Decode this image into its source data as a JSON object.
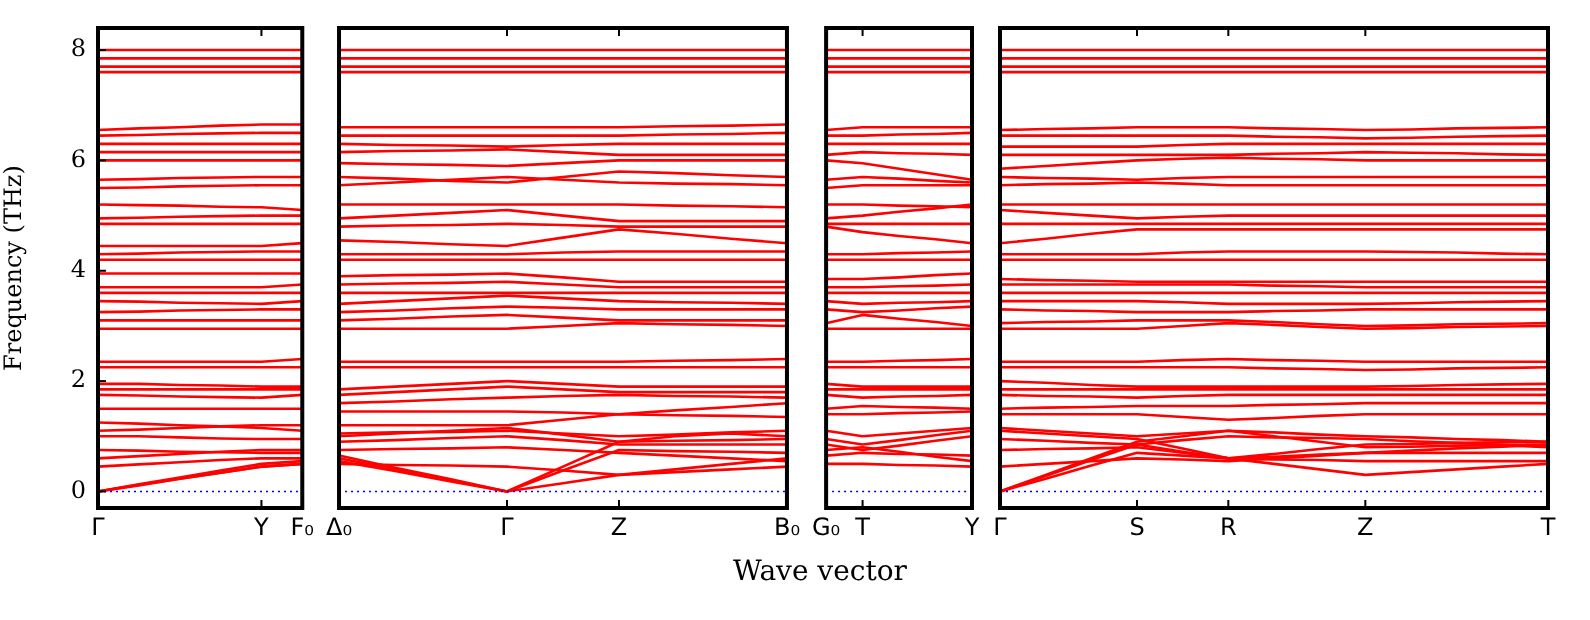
{
  "chart_data": [
    {
      "type": "line",
      "ylabel": "Frequency (THz)",
      "categories": [
        "Γ",
        null,
        null,
        null,
        "Y",
        "F₀"
      ],
      "ylim": [
        -0.3,
        8.4
      ],
      "yticks": [
        0,
        2,
        4,
        6,
        8
      ],
      "grid": false,
      "marker": "none",
      "line_style": "solid",
      "legend": false,
      "ref_lines": [
        {
          "axis": "y",
          "value": 0,
          "color": "#0000ff",
          "line_style": "dotted"
        }
      ],
      "series": [
        {
          "color": "#ff0000",
          "values": [
            0,
            0.12,
            0.23,
            0.34,
            0.45,
            0.5
          ]
        },
        {
          "color": "#ff0000",
          "values": [
            0,
            0.13,
            0.25,
            0.38,
            0.5,
            0.55
          ]
        },
        {
          "color": "#ff0000",
          "values": [
            0,
            0.11,
            0.23,
            0.34,
            0.45,
            0.5
          ]
        },
        {
          "color": "#ff0000",
          "values": [
            0.45,
            0.49,
            0.53,
            0.57,
            0.6,
            0.6
          ]
        },
        {
          "color": "#ff0000",
          "values": [
            0.6,
            0.64,
            0.68,
            0.72,
            0.75,
            0.75
          ]
        },
        {
          "color": "#ff0000",
          "values": [
            0.75,
            0.74,
            0.72,
            0.71,
            0.7,
            0.7
          ]
        },
        {
          "color": "#ff0000",
          "values": [
            1.0,
            1.0,
            0.98,
            0.96,
            0.95,
            0.95
          ]
        },
        {
          "color": "#ff0000",
          "values": [
            1.1,
            1.12,
            1.15,
            1.18,
            1.2,
            1.2
          ]
        },
        {
          "color": "#ff0000",
          "values": [
            1.25,
            1.23,
            1.2,
            1.18,
            1.15,
            1.1
          ]
        },
        {
          "color": "#ff0000",
          "values": [
            1.5,
            1.5,
            1.5,
            1.5,
            1.5,
            1.5
          ]
        },
        {
          "color": "#ff0000",
          "values": [
            1.75,
            1.74,
            1.72,
            1.71,
            1.7,
            1.75
          ]
        },
        {
          "color": "#ff0000",
          "values": [
            1.85,
            1.85,
            1.85,
            1.85,
            1.85,
            1.85
          ]
        },
        {
          "color": "#ff0000",
          "values": [
            1.95,
            1.95,
            1.93,
            1.92,
            1.9,
            1.9
          ]
        },
        {
          "color": "#ff0000",
          "values": [
            2.25,
            2.25,
            2.25,
            2.25,
            2.25,
            2.25
          ]
        },
        {
          "color": "#ff0000",
          "values": [
            2.35,
            2.35,
            2.35,
            2.35,
            2.35,
            2.4
          ]
        },
        {
          "color": "#ff0000",
          "values": [
            2.95,
            2.95,
            2.95,
            2.95,
            2.95,
            2.95
          ]
        },
        {
          "color": "#ff0000",
          "values": [
            3.1,
            3.1,
            3.1,
            3.1,
            3.1,
            3.1
          ]
        },
        {
          "color": "#ff0000",
          "values": [
            3.25,
            3.26,
            3.28,
            3.29,
            3.3,
            3.3
          ]
        },
        {
          "color": "#ff0000",
          "values": [
            3.45,
            3.44,
            3.42,
            3.41,
            3.4,
            3.45
          ]
        },
        {
          "color": "#ff0000",
          "values": [
            3.6,
            3.6,
            3.6,
            3.6,
            3.6,
            3.6
          ]
        },
        {
          "color": "#ff0000",
          "values": [
            3.7,
            3.7,
            3.7,
            3.7,
            3.7,
            3.75
          ]
        },
        {
          "color": "#ff0000",
          "values": [
            3.95,
            3.95,
            3.95,
            3.95,
            3.95,
            3.95
          ]
        },
        {
          "color": "#ff0000",
          "values": [
            4.2,
            4.2,
            4.2,
            4.2,
            4.2,
            4.2
          ]
        },
        {
          "color": "#ff0000",
          "values": [
            4.3,
            4.31,
            4.33,
            4.34,
            4.35,
            4.35
          ]
        },
        {
          "color": "#ff0000",
          "values": [
            4.45,
            4.45,
            4.45,
            4.45,
            4.45,
            4.5
          ]
        },
        {
          "color": "#ff0000",
          "values": [
            4.85,
            4.85,
            4.85,
            4.85,
            4.85,
            4.85
          ]
        },
        {
          "color": "#ff0000",
          "values": [
            4.95,
            4.96,
            4.98,
            4.99,
            5.0,
            5.0
          ]
        },
        {
          "color": "#ff0000",
          "values": [
            5.2,
            5.19,
            5.18,
            5.16,
            5.15,
            5.1
          ]
        },
        {
          "color": "#ff0000",
          "values": [
            5.5,
            5.51,
            5.53,
            5.54,
            5.55,
            5.55
          ]
        },
        {
          "color": "#ff0000",
          "values": [
            5.65,
            5.66,
            5.68,
            5.69,
            5.7,
            5.7
          ]
        },
        {
          "color": "#ff0000",
          "values": [
            6.0,
            6.0,
            6.0,
            6.0,
            6.0,
            6.0
          ]
        },
        {
          "color": "#ff0000",
          "values": [
            6.15,
            6.15,
            6.15,
            6.15,
            6.15,
            6.15
          ]
        },
        {
          "color": "#ff0000",
          "values": [
            6.3,
            6.3,
            6.3,
            6.3,
            6.3,
            6.3
          ]
        },
        {
          "color": "#ff0000",
          "values": [
            6.45,
            6.46,
            6.48,
            6.49,
            6.5,
            6.5
          ]
        },
        {
          "color": "#ff0000",
          "values": [
            6.55,
            6.58,
            6.6,
            6.63,
            6.65,
            6.65
          ]
        },
        {
          "color": "#ff0000",
          "values": [
            7.6,
            7.6,
            7.6,
            7.6,
            7.6,
            7.6
          ]
        },
        {
          "color": "#ff0000",
          "values": [
            7.7,
            7.7,
            7.7,
            7.7,
            7.7,
            7.7
          ]
        },
        {
          "color": "#ff0000",
          "values": [
            7.85,
            7.85,
            7.85,
            7.85,
            7.85,
            7.85
          ]
        },
        {
          "color": "#ff0000",
          "values": [
            8.0,
            8.0,
            8.0,
            8.0,
            8.0,
            8.0
          ]
        }
      ]
    },
    {
      "type": "line",
      "xlabel": "Wave vector",
      "categories": [
        "Δ₀",
        null,
        null,
        "Γ",
        null,
        "Z",
        null,
        null,
        "B₀"
      ],
      "ylim": [
        -0.3,
        8.4
      ],
      "tick_labels": "x",
      "grid": false,
      "marker": "none",
      "line_style": "solid",
      "legend": false,
      "ref_lines": [
        {
          "axis": "y",
          "value": 0,
          "color": "#0000ff",
          "line_style": "dotted"
        }
      ],
      "series": [
        {
          "color": "#ff0000",
          "values": [
            0.55,
            0.37,
            0.18,
            0,
            0.15,
            0.3,
            0.4,
            0.5,
            0.6
          ]
        },
        {
          "color": "#ff0000",
          "values": [
            0.6,
            0.4,
            0.2,
            0,
            0.38,
            0.75,
            0.73,
            0.72,
            0.7
          ]
        },
        {
          "color": "#ff0000",
          "values": [
            0.65,
            0.43,
            0.22,
            0,
            0.45,
            0.9,
            1.0,
            1.05,
            1.0
          ]
        },
        {
          "color": "#ff0000",
          "values": [
            0.5,
            0.48,
            0.47,
            0.45,
            0.38,
            0.3,
            0.35,
            0.4,
            0.45
          ]
        },
        {
          "color": "#ff0000",
          "values": [
            0.75,
            0.77,
            0.78,
            0.8,
            0.75,
            0.7,
            0.65,
            0.6,
            0.55
          ]
        },
        {
          "color": "#ff0000",
          "values": [
            0.9,
            0.93,
            0.97,
            1.0,
            0.93,
            0.85,
            0.85,
            0.85,
            0.85
          ]
        },
        {
          "color": "#ff0000",
          "values": [
            1.0,
            1.05,
            1.1,
            1.15,
            1.03,
            0.9,
            0.92,
            0.93,
            0.95
          ]
        },
        {
          "color": "#ff0000",
          "values": [
            1.05,
            1.07,
            1.08,
            1.1,
            1.05,
            1.0,
            1.03,
            1.07,
            1.1
          ]
        },
        {
          "color": "#ff0000",
          "values": [
            1.2,
            1.2,
            1.2,
            1.2,
            1.3,
            1.4,
            1.38,
            1.37,
            1.35
          ]
        },
        {
          "color": "#ff0000",
          "values": [
            1.45,
            1.45,
            1.45,
            1.45,
            1.43,
            1.4,
            1.47,
            1.53,
            1.6
          ]
        },
        {
          "color": "#ff0000",
          "values": [
            1.6,
            1.63,
            1.67,
            1.7,
            1.73,
            1.75,
            1.73,
            1.72,
            1.7
          ]
        },
        {
          "color": "#ff0000",
          "values": [
            1.75,
            1.8,
            1.85,
            1.9,
            1.85,
            1.8,
            1.8,
            1.8,
            1.8
          ]
        },
        {
          "color": "#ff0000",
          "values": [
            1.85,
            1.9,
            1.95,
            2.0,
            1.95,
            1.9,
            1.9,
            1.9,
            1.9
          ]
        },
        {
          "color": "#ff0000",
          "values": [
            2.25,
            2.25,
            2.25,
            2.25,
            2.25,
            2.25,
            2.25,
            2.25,
            2.25
          ]
        },
        {
          "color": "#ff0000",
          "values": [
            2.35,
            2.35,
            2.35,
            2.35,
            2.35,
            2.35,
            2.37,
            2.38,
            2.4
          ]
        },
        {
          "color": "#ff0000",
          "values": [
            2.95,
            2.95,
            2.95,
            2.95,
            3.0,
            3.05,
            3.03,
            3.02,
            3.0
          ]
        },
        {
          "color": "#ff0000",
          "values": [
            3.1,
            3.13,
            3.17,
            3.2,
            3.15,
            3.1,
            3.1,
            3.1,
            3.1
          ]
        },
        {
          "color": "#ff0000",
          "values": [
            3.25,
            3.28,
            3.32,
            3.35,
            3.33,
            3.3,
            3.3,
            3.3,
            3.3
          ]
        },
        {
          "color": "#ff0000",
          "values": [
            3.4,
            3.45,
            3.5,
            3.55,
            3.5,
            3.45,
            3.43,
            3.42,
            3.4
          ]
        },
        {
          "color": "#ff0000",
          "values": [
            3.6,
            3.6,
            3.6,
            3.6,
            3.6,
            3.6,
            3.6,
            3.6,
            3.6
          ]
        },
        {
          "color": "#ff0000",
          "values": [
            3.75,
            3.77,
            3.78,
            3.8,
            3.75,
            3.7,
            3.7,
            3.7,
            3.7
          ]
        },
        {
          "color": "#ff0000",
          "values": [
            3.9,
            3.92,
            3.93,
            3.95,
            3.88,
            3.8,
            3.8,
            3.8,
            3.8
          ]
        },
        {
          "color": "#ff0000",
          "values": [
            4.2,
            4.2,
            4.2,
            4.2,
            4.2,
            4.2,
            4.2,
            4.2,
            4.2
          ]
        },
        {
          "color": "#ff0000",
          "values": [
            4.3,
            4.3,
            4.3,
            4.3,
            4.33,
            4.35,
            4.35,
            4.35,
            4.35
          ]
        },
        {
          "color": "#ff0000",
          "values": [
            4.55,
            4.52,
            4.48,
            4.45,
            4.6,
            4.75,
            4.67,
            4.58,
            4.5
          ]
        },
        {
          "color": "#ff0000",
          "values": [
            4.8,
            4.82,
            4.83,
            4.85,
            4.83,
            4.8,
            4.8,
            4.8,
            4.8
          ]
        },
        {
          "color": "#ff0000",
          "values": [
            4.95,
            5.0,
            5.05,
            5.1,
            5.0,
            4.9,
            4.9,
            4.9,
            4.9
          ]
        },
        {
          "color": "#ff0000",
          "values": [
            5.2,
            5.2,
            5.2,
            5.2,
            5.2,
            5.2,
            5.18,
            5.17,
            5.15
          ]
        },
        {
          "color": "#ff0000",
          "values": [
            5.55,
            5.6,
            5.65,
            5.7,
            5.65,
            5.6,
            5.58,
            5.57,
            5.55
          ]
        },
        {
          "color": "#ff0000",
          "values": [
            5.7,
            5.67,
            5.63,
            5.6,
            5.7,
            5.8,
            5.77,
            5.73,
            5.7
          ]
        },
        {
          "color": "#ff0000",
          "values": [
            5.95,
            5.93,
            5.92,
            5.9,
            5.95,
            6.0,
            6.0,
            6.0,
            6.0
          ]
        },
        {
          "color": "#ff0000",
          "values": [
            6.15,
            6.17,
            6.18,
            6.2,
            6.15,
            6.1,
            6.1,
            6.1,
            6.1
          ]
        },
        {
          "color": "#ff0000",
          "values": [
            6.3,
            6.28,
            6.27,
            6.25,
            6.28,
            6.3,
            6.3,
            6.3,
            6.3
          ]
        },
        {
          "color": "#ff0000",
          "values": [
            6.45,
            6.45,
            6.45,
            6.45,
            6.45,
            6.45,
            6.47,
            6.48,
            6.5
          ]
        },
        {
          "color": "#ff0000",
          "values": [
            6.6,
            6.6,
            6.6,
            6.6,
            6.6,
            6.6,
            6.62,
            6.63,
            6.65
          ]
        },
        {
          "color": "#ff0000",
          "values": [
            7.6,
            7.6,
            7.6,
            7.6,
            7.6,
            7.6,
            7.6,
            7.6,
            7.6
          ]
        },
        {
          "color": "#ff0000",
          "values": [
            7.7,
            7.7,
            7.7,
            7.7,
            7.7,
            7.7,
            7.7,
            7.7,
            7.7
          ]
        },
        {
          "color": "#ff0000",
          "values": [
            7.85,
            7.85,
            7.85,
            7.85,
            7.85,
            7.85,
            7.85,
            7.85,
            7.85
          ]
        },
        {
          "color": "#ff0000",
          "values": [
            8.0,
            8.0,
            8.0,
            8.0,
            8.0,
            8.0,
            8.0,
            8.0,
            8.0
          ]
        }
      ]
    },
    {
      "type": "line",
      "categories": [
        "G₀",
        "T",
        null,
        null,
        "Y"
      ],
      "ylim": [
        -0.3,
        8.4
      ],
      "tick_labels": "x",
      "grid": false,
      "marker": "none",
      "line_style": "solid",
      "legend": false,
      "ref_lines": [
        {
          "axis": "y",
          "value": 0,
          "color": "#0000ff",
          "line_style": "dotted"
        }
      ],
      "series": [
        {
          "color": "#ff0000",
          "values": [
            0.5,
            0.5,
            0.48,
            0.47,
            0.45
          ]
        },
        {
          "color": "#ff0000",
          "values": [
            0.75,
            0.8,
            0.72,
            0.63,
            0.55
          ]
        },
        {
          "color": "#ff0000",
          "values": [
            0.95,
            0.85,
            0.93,
            1.02,
            1.1
          ]
        },
        {
          "color": "#ff0000",
          "values": [
            0.85,
            0.75,
            0.83,
            0.92,
            1.0
          ]
        },
        {
          "color": "#ff0000",
          "values": [
            0.65,
            0.7,
            0.68,
            0.67,
            0.65
          ]
        },
        {
          "color": "#ff0000",
          "values": [
            1.1,
            1.0,
            1.05,
            1.1,
            1.15
          ]
        },
        {
          "color": "#ff0000",
          "values": [
            1.4,
            1.4,
            1.42,
            1.43,
            1.45
          ]
        },
        {
          "color": "#ff0000",
          "values": [
            1.5,
            1.55,
            1.53,
            1.52,
            1.5
          ]
        },
        {
          "color": "#ff0000",
          "values": [
            1.75,
            1.7,
            1.72,
            1.73,
            1.75
          ]
        },
        {
          "color": "#ff0000",
          "values": [
            1.85,
            1.85,
            1.85,
            1.85,
            1.85
          ]
        },
        {
          "color": "#ff0000",
          "values": [
            1.95,
            1.9,
            1.9,
            1.9,
            1.9
          ]
        },
        {
          "color": "#ff0000",
          "values": [
            2.25,
            2.25,
            2.25,
            2.25,
            2.25
          ]
        },
        {
          "color": "#ff0000",
          "values": [
            2.35,
            2.35,
            2.37,
            2.38,
            2.4
          ]
        },
        {
          "color": "#ff0000",
          "values": [
            2.95,
            2.95,
            2.95,
            2.95,
            2.95
          ]
        },
        {
          "color": "#ff0000",
          "values": [
            3.05,
            3.2,
            3.13,
            3.07,
            3.0
          ]
        },
        {
          "color": "#ff0000",
          "values": [
            3.3,
            3.25,
            3.28,
            3.32,
            3.35
          ]
        },
        {
          "color": "#ff0000",
          "values": [
            3.45,
            3.4,
            3.42,
            3.43,
            3.45
          ]
        },
        {
          "color": "#ff0000",
          "values": [
            3.6,
            3.6,
            3.6,
            3.6,
            3.6
          ]
        },
        {
          "color": "#ff0000",
          "values": [
            3.7,
            3.7,
            3.72,
            3.73,
            3.75
          ]
        },
        {
          "color": "#ff0000",
          "values": [
            3.85,
            3.85,
            3.88,
            3.92,
            3.95
          ]
        },
        {
          "color": "#ff0000",
          "values": [
            4.2,
            4.2,
            4.2,
            4.2,
            4.2
          ]
        },
        {
          "color": "#ff0000",
          "values": [
            4.3,
            4.3,
            4.32,
            4.33,
            4.35
          ]
        },
        {
          "color": "#ff0000",
          "values": [
            4.8,
            4.7,
            4.63,
            4.57,
            4.5
          ]
        },
        {
          "color": "#ff0000",
          "values": [
            4.85,
            4.85,
            4.85,
            4.85,
            4.85
          ]
        },
        {
          "color": "#ff0000",
          "values": [
            4.95,
            5.0,
            5.07,
            5.13,
            5.2
          ]
        },
        {
          "color": "#ff0000",
          "values": [
            5.2,
            5.2,
            5.18,
            5.17,
            5.15
          ]
        },
        {
          "color": "#ff0000",
          "values": [
            5.5,
            5.55,
            5.55,
            5.55,
            5.55
          ]
        },
        {
          "color": "#ff0000",
          "values": [
            5.65,
            5.7,
            5.67,
            5.63,
            5.6
          ]
        },
        {
          "color": "#ff0000",
          "values": [
            6.0,
            5.95,
            5.85,
            5.75,
            5.65
          ]
        },
        {
          "color": "#ff0000",
          "values": [
            6.1,
            6.15,
            6.13,
            6.12,
            6.1
          ]
        },
        {
          "color": "#ff0000",
          "values": [
            6.3,
            6.3,
            6.3,
            6.3,
            6.3
          ]
        },
        {
          "color": "#ff0000",
          "values": [
            6.45,
            6.45,
            6.47,
            6.48,
            6.5
          ]
        },
        {
          "color": "#ff0000",
          "values": [
            6.55,
            6.6,
            6.6,
            6.6,
            6.6
          ]
        },
        {
          "color": "#ff0000",
          "values": [
            7.6,
            7.6,
            7.6,
            7.6,
            7.6
          ]
        },
        {
          "color": "#ff0000",
          "values": [
            7.7,
            7.7,
            7.7,
            7.7,
            7.7
          ]
        },
        {
          "color": "#ff0000",
          "values": [
            7.85,
            7.85,
            7.85,
            7.85,
            7.85
          ]
        },
        {
          "color": "#ff0000",
          "values": [
            8.0,
            8.0,
            8.0,
            8.0,
            8.0
          ]
        }
      ]
    },
    {
      "type": "line",
      "categories": [
        "Γ",
        null,
        null,
        "S",
        null,
        "R",
        null,
        null,
        "Z",
        null,
        null,
        null,
        "T"
      ],
      "ylim": [
        -0.3,
        8.4
      ],
      "tick_labels": "x",
      "grid": false,
      "marker": "none",
      "line_style": "solid",
      "legend": false,
      "ref_lines": [
        {
          "axis": "y",
          "value": 0,
          "color": "#0000ff",
          "line_style": "dotted"
        }
      ],
      "series": [
        {
          "color": "#ff0000",
          "values": [
            0,
            0.23,
            0.47,
            0.7,
            0.65,
            0.6,
            0.5,
            0.4,
            0.3,
            0.35,
            0.4,
            0.45,
            0.5
          ]
        },
        {
          "color": "#ff0000",
          "values": [
            0,
            0.28,
            0.57,
            0.85,
            0.72,
            0.6,
            0.63,
            0.67,
            0.7,
            0.7,
            0.7,
            0.7,
            0.7
          ]
        },
        {
          "color": "#ff0000",
          "values": [
            0,
            0.3,
            0.6,
            0.9,
            1.0,
            1.1,
            1.0,
            0.9,
            0.8,
            0.81,
            0.83,
            0.84,
            0.85
          ]
        },
        {
          "color": "#ff0000",
          "values": [
            0.45,
            0.5,
            0.55,
            0.6,
            0.58,
            0.55,
            0.6,
            0.65,
            0.7,
            0.74,
            0.78,
            0.81,
            0.85
          ]
        },
        {
          "color": "#ff0000",
          "values": [
            0.75,
            0.77,
            0.78,
            0.8,
            0.7,
            0.6,
            0.68,
            0.77,
            0.85,
            0.86,
            0.88,
            0.89,
            0.9
          ]
        },
        {
          "color": "#ff0000",
          "values": [
            0.95,
            0.92,
            0.88,
            0.85,
            0.93,
            1.0,
            0.98,
            0.97,
            0.95,
            0.91,
            0.88,
            0.84,
            0.8
          ]
        },
        {
          "color": "#ff0000",
          "values": [
            1.1,
            1.05,
            1.0,
            0.95,
            0.78,
            0.6,
            0.58,
            0.57,
            0.55,
            0.55,
            0.55,
            0.55,
            0.55
          ]
        },
        {
          "color": "#ff0000",
          "values": [
            1.15,
            1.1,
            1.05,
            1.0,
            1.05,
            1.1,
            1.07,
            1.03,
            1.0,
            0.98,
            0.95,
            0.93,
            0.9
          ]
        },
        {
          "color": "#ff0000",
          "values": [
            1.4,
            1.4,
            1.4,
            1.4,
            1.35,
            1.3,
            1.33,
            1.37,
            1.4,
            1.4,
            1.4,
            1.4,
            1.4
          ]
        },
        {
          "color": "#ff0000",
          "values": [
            1.5,
            1.52,
            1.53,
            1.55,
            1.55,
            1.55,
            1.57,
            1.58,
            1.6,
            1.6,
            1.6,
            1.6,
            1.6
          ]
        },
        {
          "color": "#ff0000",
          "values": [
            1.75,
            1.73,
            1.72,
            1.7,
            1.73,
            1.75,
            1.75,
            1.75,
            1.75,
            1.75,
            1.75,
            1.75,
            1.75
          ]
        },
        {
          "color": "#ff0000",
          "values": [
            1.85,
            1.85,
            1.85,
            1.85,
            1.85,
            1.85,
            1.85,
            1.85,
            1.85,
            1.85,
            1.85,
            1.85,
            1.85
          ]
        },
        {
          "color": "#ff0000",
          "values": [
            2.0,
            1.97,
            1.93,
            1.9,
            1.9,
            1.9,
            1.9,
            1.9,
            1.9,
            1.91,
            1.93,
            1.94,
            1.95
          ]
        },
        {
          "color": "#ff0000",
          "values": [
            2.25,
            2.25,
            2.25,
            2.25,
            2.25,
            2.25,
            2.23,
            2.22,
            2.2,
            2.21,
            2.23,
            2.24,
            2.25
          ]
        },
        {
          "color": "#ff0000",
          "values": [
            2.35,
            2.35,
            2.35,
            2.35,
            2.38,
            2.4,
            2.38,
            2.37,
            2.35,
            2.35,
            2.35,
            2.35,
            2.35
          ]
        },
        {
          "color": "#ff0000",
          "values": [
            2.95,
            2.95,
            2.95,
            2.95,
            3.0,
            3.05,
            3.02,
            2.98,
            2.95,
            2.96,
            2.98,
            2.99,
            3.0
          ]
        },
        {
          "color": "#ff0000",
          "values": [
            3.05,
            3.07,
            3.08,
            3.1,
            3.1,
            3.1,
            3.07,
            3.03,
            3.0,
            3.01,
            3.03,
            3.04,
            3.05
          ]
        },
        {
          "color": "#ff0000",
          "values": [
            3.3,
            3.28,
            3.27,
            3.25,
            3.25,
            3.25,
            3.27,
            3.28,
            3.3,
            3.3,
            3.3,
            3.3,
            3.3
          ]
        },
        {
          "color": "#ff0000",
          "values": [
            3.45,
            3.45,
            3.45,
            3.45,
            3.43,
            3.4,
            3.4,
            3.4,
            3.4,
            3.41,
            3.43,
            3.44,
            3.45
          ]
        },
        {
          "color": "#ff0000",
          "values": [
            3.6,
            3.6,
            3.6,
            3.6,
            3.6,
            3.6,
            3.6,
            3.6,
            3.6,
            3.6,
            3.6,
            3.6,
            3.6
          ]
        },
        {
          "color": "#ff0000",
          "values": [
            3.75,
            3.75,
            3.75,
            3.75,
            3.75,
            3.75,
            3.73,
            3.72,
            3.7,
            3.7,
            3.7,
            3.7,
            3.7
          ]
        },
        {
          "color": "#ff0000",
          "values": [
            3.85,
            3.83,
            3.82,
            3.8,
            3.8,
            3.8,
            3.8,
            3.8,
            3.8,
            3.8,
            3.8,
            3.8,
            3.8
          ]
        },
        {
          "color": "#ff0000",
          "values": [
            4.2,
            4.2,
            4.2,
            4.2,
            4.2,
            4.2,
            4.2,
            4.2,
            4.2,
            4.2,
            4.2,
            4.2,
            4.2
          ]
        },
        {
          "color": "#ff0000",
          "values": [
            4.3,
            4.3,
            4.3,
            4.3,
            4.33,
            4.35,
            4.35,
            4.35,
            4.35,
            4.34,
            4.33,
            4.31,
            4.3
          ]
        },
        {
          "color": "#ff0000",
          "values": [
            4.5,
            4.58,
            4.67,
            4.75,
            4.75,
            4.75,
            4.75,
            4.75,
            4.75,
            4.75,
            4.75,
            4.75,
            4.75
          ]
        },
        {
          "color": "#ff0000",
          "values": [
            4.85,
            4.85,
            4.85,
            4.85,
            4.85,
            4.85,
            4.85,
            4.85,
            4.85,
            4.85,
            4.85,
            4.85,
            4.85
          ]
        },
        {
          "color": "#ff0000",
          "values": [
            5.1,
            5.05,
            5.0,
            4.95,
            4.98,
            5.0,
            5.0,
            5.0,
            5.0,
            5.0,
            5.0,
            5.0,
            5.0
          ]
        },
        {
          "color": "#ff0000",
          "values": [
            5.2,
            5.2,
            5.2,
            5.2,
            5.2,
            5.2,
            5.2,
            5.2,
            5.2,
            5.2,
            5.2,
            5.2,
            5.2
          ]
        },
        {
          "color": "#ff0000",
          "values": [
            5.55,
            5.57,
            5.58,
            5.6,
            5.58,
            5.55,
            5.55,
            5.55,
            5.55,
            5.55,
            5.55,
            5.55,
            5.55
          ]
        },
        {
          "color": "#ff0000",
          "values": [
            5.7,
            5.68,
            5.67,
            5.65,
            5.68,
            5.7,
            5.7,
            5.7,
            5.7,
            5.7,
            5.7,
            5.7,
            5.7
          ]
        },
        {
          "color": "#ff0000",
          "values": [
            5.85,
            5.9,
            5.95,
            6.0,
            6.03,
            6.05,
            6.03,
            6.02,
            6.0,
            6.0,
            6.0,
            6.0,
            6.0
          ]
        },
        {
          "color": "#ff0000",
          "values": [
            6.1,
            6.1,
            6.1,
            6.1,
            6.1,
            6.1,
            6.12,
            6.13,
            6.15,
            6.14,
            6.13,
            6.11,
            6.1
          ]
        },
        {
          "color": "#ff0000",
          "values": [
            6.25,
            6.25,
            6.25,
            6.25,
            6.28,
            6.3,
            6.3,
            6.3,
            6.3,
            6.3,
            6.3,
            6.3,
            6.3
          ]
        },
        {
          "color": "#ff0000",
          "values": [
            6.45,
            6.45,
            6.45,
            6.45,
            6.45,
            6.45,
            6.43,
            6.42,
            6.4,
            6.41,
            6.43,
            6.44,
            6.45
          ]
        },
        {
          "color": "#ff0000",
          "values": [
            6.55,
            6.57,
            6.58,
            6.6,
            6.6,
            6.6,
            6.58,
            6.57,
            6.55,
            6.56,
            6.58,
            6.59,
            6.6
          ]
        },
        {
          "color": "#ff0000",
          "values": [
            7.6,
            7.6,
            7.6,
            7.6,
            7.6,
            7.6,
            7.6,
            7.6,
            7.6,
            7.6,
            7.6,
            7.6,
            7.6
          ]
        },
        {
          "color": "#ff0000",
          "values": [
            7.7,
            7.7,
            7.7,
            7.7,
            7.7,
            7.7,
            7.7,
            7.7,
            7.7,
            7.7,
            7.7,
            7.7,
            7.7
          ]
        },
        {
          "color": "#ff0000",
          "values": [
            7.85,
            7.85,
            7.85,
            7.85,
            7.85,
            7.85,
            7.85,
            7.85,
            7.85,
            7.85,
            7.85,
            7.85,
            7.85
          ]
        },
        {
          "color": "#ff0000",
          "values": [
            8.0,
            8.0,
            8.0,
            8.0,
            8.0,
            8.0,
            8.0,
            8.0,
            8.0,
            8.0,
            8.0,
            8.0,
            8.0
          ]
        }
      ]
    }
  ]
}
